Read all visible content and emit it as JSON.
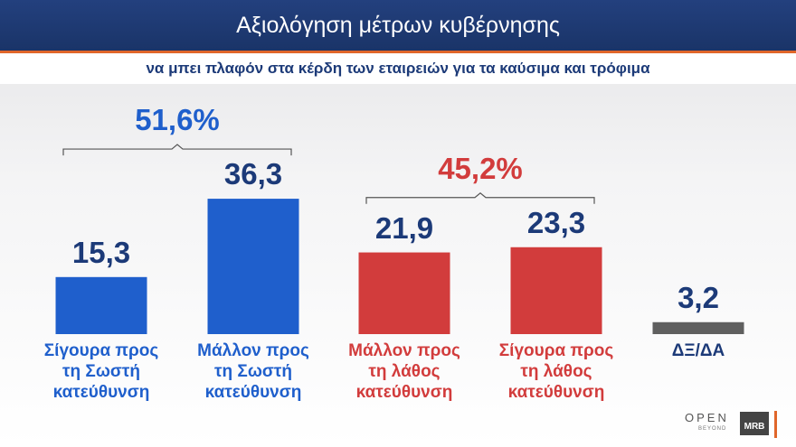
{
  "chart_data": {
    "type": "bar",
    "title": "Αξιολόγηση μέτρων κυβέρνησης",
    "subtitle": "να μπει πλαφόν στα κέρδη των εταιρειών για τα καύσιμα και τρόφιμα",
    "categories": [
      "Σίγουρα προς\nτη Σωστή\nκατεύθυνση",
      "Μάλλον προς\nτη Σωστή\nκατεύθυνση",
      "Μάλλον προς\nτη λάθος\nκατεύθυνση",
      "Σίγουρα προς\nτη λάθος\nκατεύθυνση",
      "ΔΞ/ΔΑ"
    ],
    "values": [
      15.3,
      36.3,
      21.9,
      23.3,
      3.2
    ],
    "value_labels": [
      "15,3",
      "36,3",
      "21,9",
      "23,3",
      "3,2"
    ],
    "colors": [
      "#1f5fcc",
      "#1f5fcc",
      "#d23c3c",
      "#d23c3c",
      "#5f5f5f"
    ],
    "label_colors": [
      "#1f5fcc",
      "#1f5fcc",
      "#d23c3c",
      "#d23c3c",
      "#1c3a78"
    ],
    "groups": [
      {
        "value": 51.6,
        "label": "51,6%",
        "color": "#1f5fcc"
      },
      {
        "value": 45.2,
        "label": "45,2%",
        "color": "#d23c3c"
      }
    ]
  },
  "logos": {
    "open": "OPEN",
    "beyond": "BEYOND",
    "mrb": "MRB"
  }
}
